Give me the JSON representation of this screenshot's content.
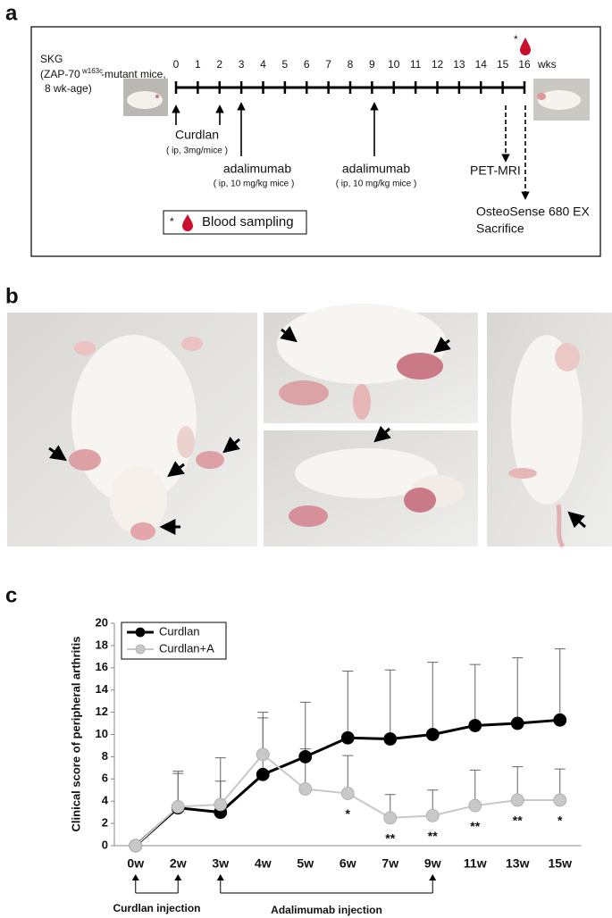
{
  "panel_a": {
    "label": "a",
    "strain_line1": "SKG",
    "strain_pre": "(ZAP-70",
    "strain_sup": "w163c",
    "strain_post": "-mutant mice,",
    "strain_line3": "8 wk-age)",
    "weeks": [
      0,
      1,
      2,
      3,
      4,
      5,
      6,
      7,
      8,
      9,
      10,
      11,
      12,
      13,
      14,
      15,
      16
    ],
    "week_unit": "wks",
    "blood_mark": "*",
    "curdlan": "Curdlan",
    "curdlan_dose": "( ip, 3mg/mice )",
    "adalimumab_1": "adalimumab",
    "adalimumab_1_dose": "( ip, 10 mg/kg mice )",
    "adalimumab_2": "adalimumab",
    "adalimumab_2_dose": "( ip, 10 mg/kg mice )",
    "pet_mri": "PET-MRI",
    "osteosense": "OsteoSense 680 EX",
    "sacrifice": "Sacrifice",
    "legend_mark": "*",
    "legend_text": "Blood sampling"
  },
  "panel_b": {
    "label": "b"
  },
  "panel_c": {
    "label": "c"
  },
  "chart_data": {
    "type": "line",
    "ylabel": "Clinical score of peripheral arthritis",
    "categories": [
      "0w",
      "2w",
      "3w",
      "4w",
      "5w",
      "6w",
      "7w",
      "9w",
      "11w",
      "13w",
      "15w"
    ],
    "series": [
      {
        "name": "Curdlan",
        "color": "#000000",
        "values": [
          0,
          3.4,
          3.0,
          6.4,
          8.0,
          9.7,
          9.6,
          10.0,
          10.8,
          11.0,
          11.3
        ],
        "errors": [
          0,
          3.3,
          2.8,
          5.1,
          4.9,
          6.0,
          6.2,
          6.5,
          5.5,
          5.9,
          6.4
        ]
      },
      {
        "name": "Curdlan+A",
        "color": "#c8c8c8",
        "values": [
          0,
          3.5,
          3.7,
          8.2,
          5.1,
          4.7,
          2.5,
          2.7,
          3.6,
          4.1,
          4.1
        ],
        "errors": [
          0,
          3.0,
          4.2,
          3.8,
          3.6,
          3.4,
          2.1,
          2.3,
          3.2,
          3.0,
          2.8
        ],
        "significance": [
          null,
          null,
          null,
          null,
          null,
          "*",
          "**",
          "**",
          "**",
          "**",
          "*"
        ]
      }
    ],
    "ylim": [
      0,
      20
    ],
    "yticks": [
      0,
      2,
      4,
      6,
      8,
      10,
      12,
      14,
      16,
      18,
      20
    ],
    "legend": "upper left",
    "grid": false,
    "curdlan_injection": "Curdlan  injection",
    "adalimumab_injection": "Adalimumab  injection"
  }
}
